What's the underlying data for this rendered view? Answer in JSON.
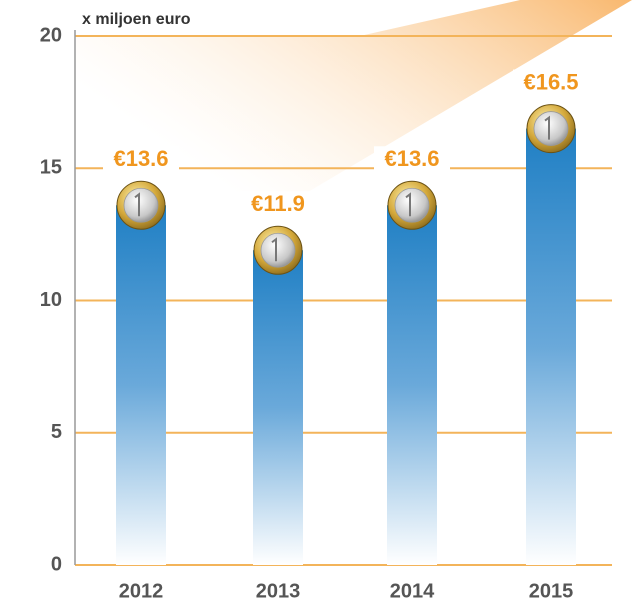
{
  "chart_data": {
    "type": "bar",
    "title": "x miljoen euro",
    "categories": [
      "2012",
      "2013",
      "2014",
      "2015"
    ],
    "values": [
      13.6,
      11.9,
      13.6,
      16.5
    ],
    "value_labels": [
      "€13.6",
      "€11.9",
      "€13.6",
      "€16.5"
    ],
    "color": "#1f7fc4",
    "label_color": "#f0961e",
    "grid_color": "#f3b45a",
    "ylim": [
      0,
      20
    ],
    "yticks": [
      0,
      5,
      10,
      15,
      20
    ],
    "grid": true
  }
}
